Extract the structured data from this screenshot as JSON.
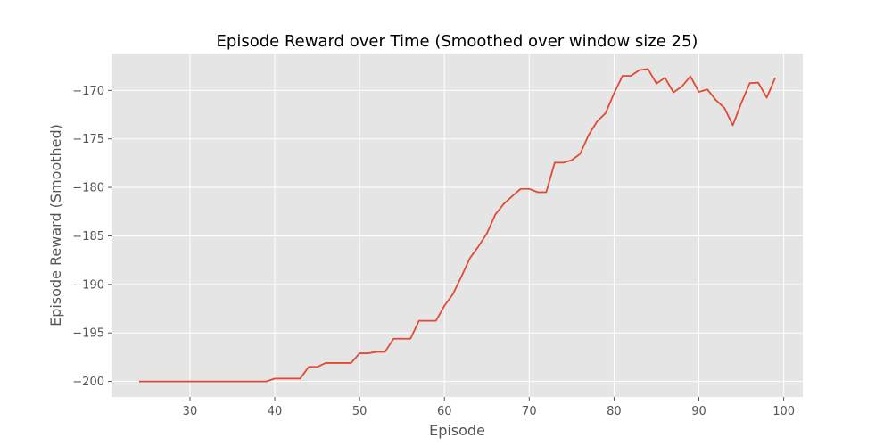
{
  "chart_data": {
    "type": "line",
    "title": "Episode Reward over Time (Smoothed over window size 25)",
    "xlabel": "Episode",
    "ylabel": "Episode Reward (Smoothed)",
    "xlim": [
      20.75,
      102.25
    ],
    "ylim": [
      -201.6,
      -166.2
    ],
    "xticks": [
      30,
      40,
      50,
      60,
      70,
      80,
      90,
      100
    ],
    "yticks": [
      -200,
      -195,
      -190,
      -185,
      -180,
      -175,
      -170
    ],
    "grid": true,
    "series": [
      {
        "color": "#e24a33",
        "x": [
          24,
          25,
          26,
          27,
          28,
          29,
          30,
          31,
          32,
          33,
          34,
          35,
          36,
          37,
          38,
          39,
          40,
          41,
          42,
          43,
          44,
          45,
          46,
          47,
          48,
          49,
          50,
          51,
          52,
          53,
          54,
          55,
          56,
          57,
          58,
          59,
          60,
          61,
          62,
          63,
          64,
          65,
          66,
          67,
          68,
          69,
          70,
          71,
          72,
          73,
          74,
          75,
          76,
          77,
          78,
          79,
          80,
          81,
          82,
          83,
          84,
          85,
          86,
          87,
          88,
          89,
          90,
          91,
          92,
          93,
          94,
          95,
          96,
          97,
          98,
          99
        ],
        "values": [
          -200,
          -200,
          -200,
          -200,
          -200,
          -200,
          -200,
          -200,
          -200,
          -200,
          -200,
          -200,
          -200,
          -200,
          -200,
          -200,
          -199.7,
          -199.7,
          -199.7,
          -199.7,
          -198.5,
          -198.5,
          -198.1,
          -198.1,
          -198.1,
          -198.1,
          -197.1,
          -197.1,
          -196.95,
          -196.95,
          -195.6,
          -195.6,
          -195.6,
          -193.75,
          -193.75,
          -193.75,
          -192.2,
          -191,
          -189.2,
          -187.3,
          -186.1,
          -184.75,
          -182.8,
          -181.7,
          -180.9,
          -180.15,
          -180.15,
          -180.5,
          -180.5,
          -177.45,
          -177.45,
          -177.2,
          -176.55,
          -174.6,
          -173.2,
          -172.35,
          -170.3,
          -168.5,
          -168.5,
          -167.9,
          -167.8,
          -169.3,
          -168.7,
          -170.2,
          -169.6,
          -168.55,
          -170.15,
          -169.9,
          -171,
          -171.8,
          -173.6,
          -171.3,
          -169.25,
          -169.2,
          -170.75,
          -168.7
        ]
      }
    ]
  }
}
